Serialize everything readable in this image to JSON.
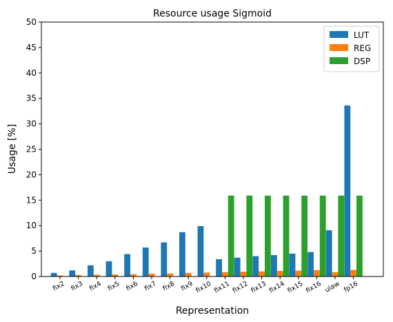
{
  "chart_data": {
    "type": "bar",
    "title": "Resource usage Sigmoid",
    "xlabel": "Representation",
    "ylabel": "Usage [%]",
    "ylim": [
      0,
      50
    ],
    "yticks": [
      0,
      5,
      10,
      15,
      20,
      25,
      30,
      35,
      40,
      45,
      50
    ],
    "grid": false,
    "legend_position": "top-right",
    "categories": [
      "fix2",
      "fix3",
      "fix4",
      "fix5",
      "fix6",
      "fix7",
      "fix8",
      "fix9",
      "fix10",
      "fix11",
      "fix12",
      "fix13",
      "fix14",
      "fix15",
      "fix16",
      "ulaw",
      "fp16"
    ],
    "series": [
      {
        "name": "LUT",
        "color": "#1f77b4",
        "values": [
          0.7,
          1.2,
          2.2,
          3.0,
          4.4,
          5.7,
          6.7,
          8.7,
          9.9,
          3.4,
          3.7,
          4.0,
          4.2,
          4.5,
          4.8,
          9.1,
          33.6
        ]
      },
      {
        "name": "REG",
        "color": "#ff7f0e",
        "values": [
          0.2,
          0.3,
          0.35,
          0.4,
          0.45,
          0.55,
          0.6,
          0.7,
          0.75,
          0.85,
          0.95,
          1.0,
          1.1,
          1.15,
          1.25,
          0.85,
          1.3
        ]
      },
      {
        "name": "DSP",
        "color": "#2ca02c",
        "values": [
          0,
          0,
          0,
          0,
          0,
          0,
          0,
          0,
          0,
          15.9,
          15.9,
          15.9,
          15.9,
          15.9,
          15.9,
          15.9,
          15.9
        ]
      }
    ]
  }
}
